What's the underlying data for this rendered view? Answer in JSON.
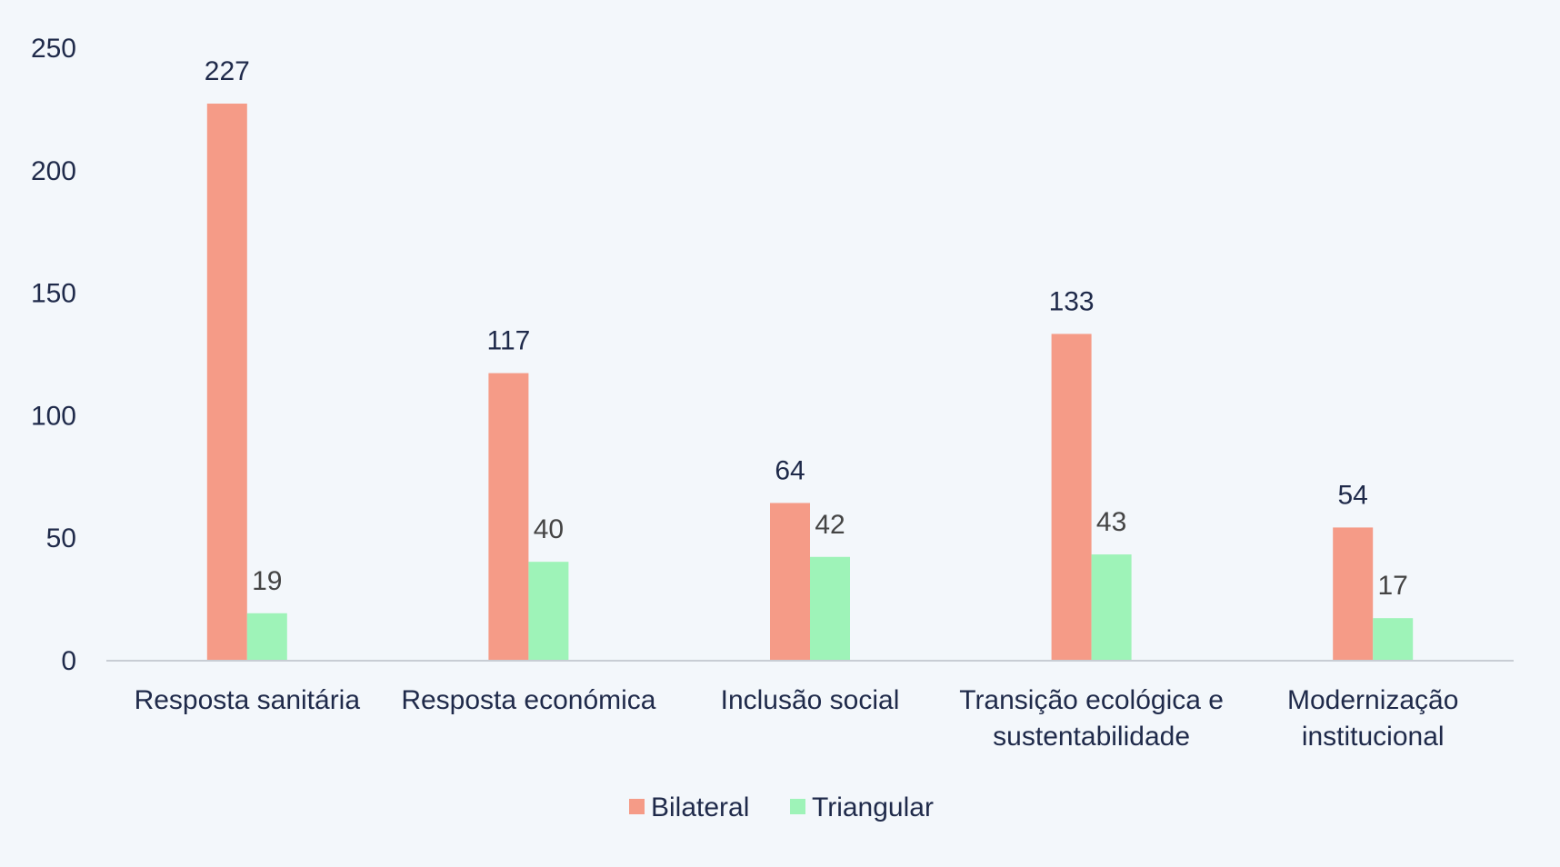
{
  "chart_data": {
    "type": "bar",
    "title": "",
    "xlabel": "",
    "ylabel": "",
    "categories": [
      [
        "Resposta sanitária"
      ],
      [
        "Resposta económica"
      ],
      [
        "Inclusão social"
      ],
      [
        "Transição ecológica e",
        "sustentabilidade"
      ],
      [
        "Modernização",
        "institucional"
      ]
    ],
    "series": [
      {
        "name": "Bilateral",
        "color": "#f59b87",
        "values": [
          227,
          117,
          64,
          133,
          54
        ]
      },
      {
        "name": "Triangular",
        "color": "#9ef3b8",
        "values": [
          19,
          40,
          42,
          43,
          17
        ]
      }
    ],
    "ylim": [
      0,
      250
    ],
    "yticks": [
      0,
      50,
      100,
      150,
      200,
      250
    ],
    "grid": false,
    "legend": "bottom-center",
    "colors": {
      "background": "#f3f7fb",
      "axis_text": "#1f2a4a",
      "data_label_primary": "#1f2a4a",
      "data_label_secondary": "#444444",
      "baseline": "#c8cdd4"
    }
  }
}
